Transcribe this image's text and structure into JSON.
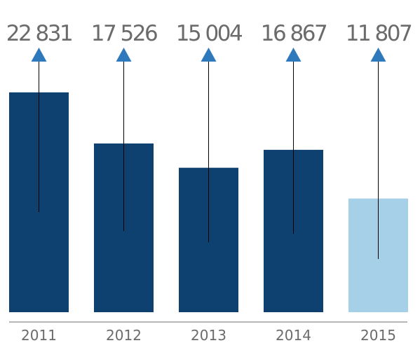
{
  "chart_data": {
    "type": "bar",
    "categories": [
      "2011",
      "2012",
      "2013",
      "2014",
      "2015"
    ],
    "values": [
      22831,
      17526,
      15004,
      16867,
      11807
    ],
    "value_labels": [
      "22 831",
      "17 526",
      "15 004",
      "16 867",
      "11 807"
    ],
    "ylim": [
      0,
      22831
    ],
    "grid": false,
    "title": "",
    "xlabel": "",
    "ylabel": "",
    "colors": {
      "bar": "#0f4170",
      "bar_highlight": "#a5d0e8",
      "marker": "#2e78bc",
      "label": "#6b6b6b",
      "axis": "#6b6b6b",
      "line": "#000000"
    },
    "highlight_index": 4,
    "marker_icon": "triangle-up-icon"
  }
}
